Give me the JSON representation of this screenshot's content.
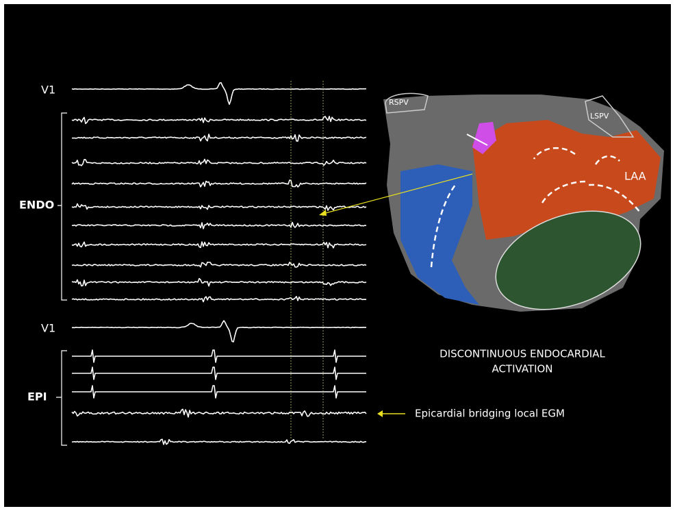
{
  "traces": {
    "v1_top": "V1",
    "endo": "ENDO",
    "v1_bottom": "V1",
    "epi": "EPI"
  },
  "map": {
    "rspv": "RSPV",
    "lspv": "LSPV",
    "laa": "LAA"
  },
  "caption": {
    "lines": [
      "DISCONTINUOUS ENDOCARDIAL",
      "ACTIVATION"
    ]
  },
  "annotation": "Epicardial bridging local EGM"
}
